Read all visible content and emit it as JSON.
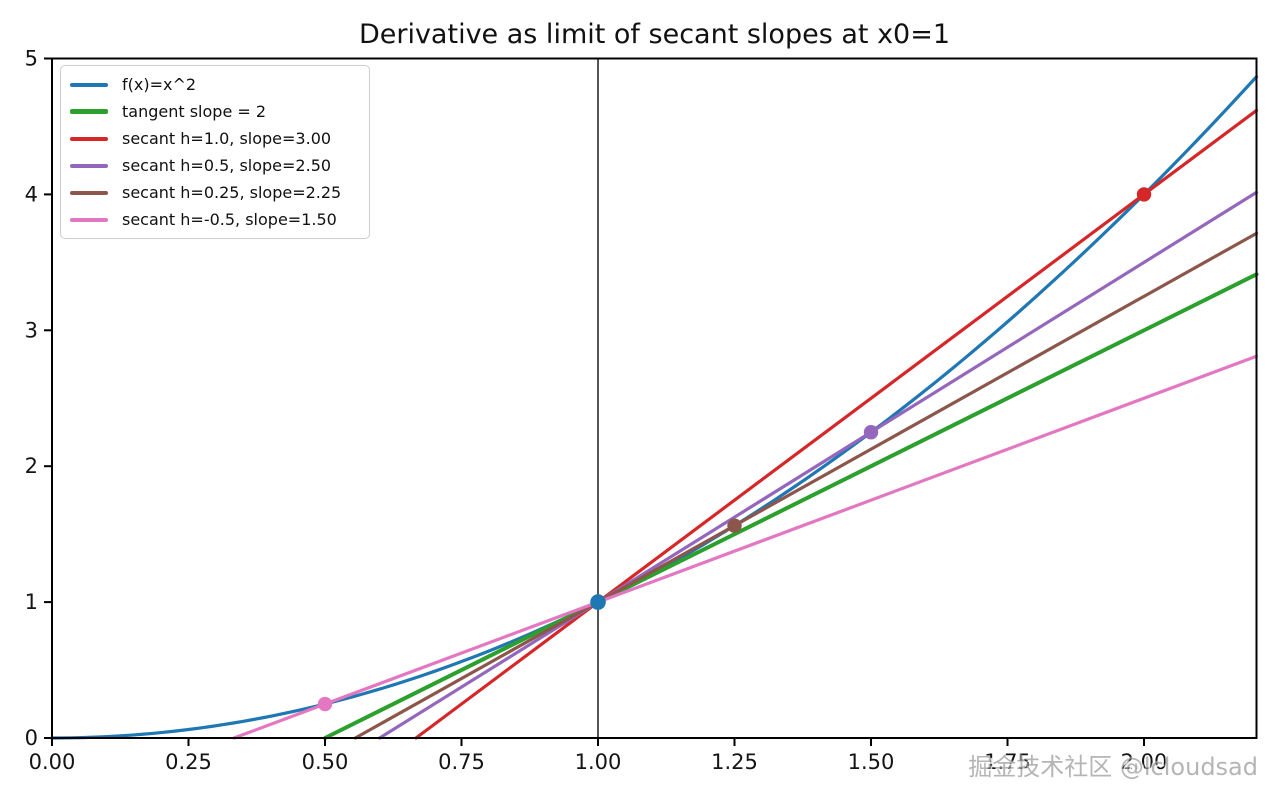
{
  "title": "Derivative as limit of secant slopes at x0=1",
  "watermark": "掘金技术社区 @lcloudsad",
  "chart_data": {
    "type": "line",
    "title": "Derivative as limit of secant slopes at x0=1",
    "xlabel": "",
    "ylabel": "",
    "xlim": [
      0,
      2.206
    ],
    "ylim": [
      0,
      5
    ],
    "xticks": [
      {
        "value": 0.0,
        "label": "0.00"
      },
      {
        "value": 0.25,
        "label": "0.25"
      },
      {
        "value": 0.5,
        "label": "0.50"
      },
      {
        "value": 0.75,
        "label": "0.75"
      },
      {
        "value": 1.0,
        "label": "1.00"
      },
      {
        "value": 1.25,
        "label": "1.25"
      },
      {
        "value": 1.5,
        "label": "1.50"
      },
      {
        "value": 1.75,
        "label": "1.75"
      },
      {
        "value": 2.0,
        "label": "2.00"
      }
    ],
    "yticks": [
      {
        "value": 0,
        "label": "0"
      },
      {
        "value": 1,
        "label": "1"
      },
      {
        "value": 2,
        "label": "2"
      },
      {
        "value": 3,
        "label": "3"
      },
      {
        "value": 4,
        "label": "4"
      },
      {
        "value": 5,
        "label": "5"
      }
    ],
    "grid": false,
    "legend_position": "upper left",
    "x0": 1,
    "base_point": {
      "x": 1,
      "y": 1,
      "color": "#1f77b4"
    },
    "vline_x": 1,
    "vline_color": "#2b2b2b",
    "series": [
      {
        "label": "f(x)=x^2",
        "color": "#1f77b4",
        "kind": "parabola",
        "linewidth": 3.2
      },
      {
        "label": "tangent slope = 2",
        "color": "#2ca02c",
        "kind": "line",
        "slope": 2.0,
        "through": [
          1,
          1
        ],
        "linewidth": 4
      },
      {
        "label": "secant h=1.0, slope=3.00",
        "color": "#d62728",
        "kind": "line",
        "slope": 3.0,
        "through": [
          1,
          1
        ],
        "h": 1.0,
        "point": [
          2.0,
          4.0
        ],
        "linewidth": 3.2
      },
      {
        "label": "secant h=0.5, slope=2.50",
        "color": "#9467bd",
        "kind": "line",
        "slope": 2.5,
        "through": [
          1,
          1
        ],
        "h": 0.5,
        "point": [
          1.5,
          2.25
        ],
        "linewidth": 3.2
      },
      {
        "label": "secant h=0.25, slope=2.25",
        "color": "#8c564b",
        "kind": "line",
        "slope": 2.25,
        "through": [
          1,
          1
        ],
        "h": 0.25,
        "point": [
          1.25,
          1.5625
        ],
        "linewidth": 3.2
      },
      {
        "label": "secant h=-0.5, slope=1.50",
        "color": "#e377c2",
        "kind": "line",
        "slope": 1.5,
        "through": [
          1,
          1
        ],
        "h": -0.5,
        "point": [
          0.5,
          0.25
        ],
        "linewidth": 3.2
      }
    ]
  }
}
